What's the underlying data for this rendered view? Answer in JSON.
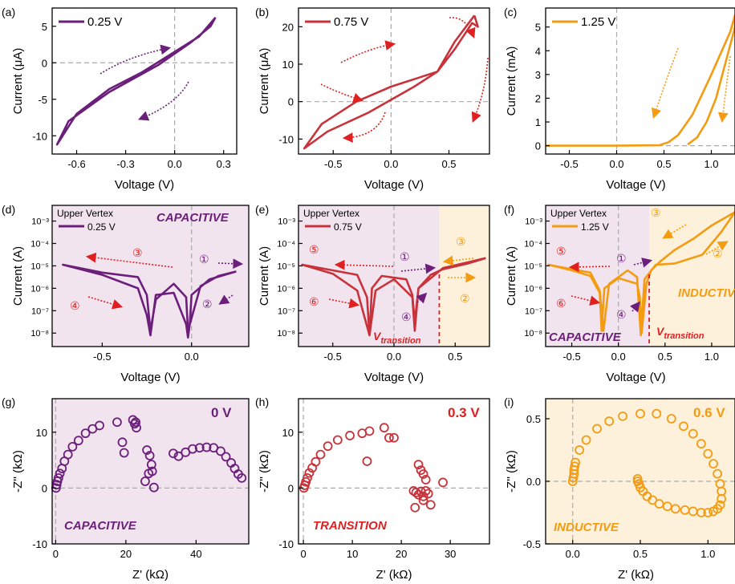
{
  "chart_data": [
    {
      "panel": "(a)",
      "type": "line",
      "xlabel": "Voltage (V)",
      "ylabel": "Current (μA)",
      "xlim": [
        -0.75,
        0.38
      ],
      "ylim": [
        -12.5,
        7.5
      ],
      "xticks": [
        -0.6,
        -0.3,
        0.0,
        0.3
      ],
      "xtick_labels": [
        "-0.6",
        "-0.3",
        "0.0",
        "0.3"
      ],
      "yticks": [
        -10,
        -5,
        0,
        5
      ],
      "ytick_labels": [
        "-10",
        "-5",
        "0",
        "5"
      ],
      "yscale": "linear",
      "background": "#ffffff",
      "series": [
        {
          "name": "0.25 V",
          "color": "#6b1f7b",
          "x": [
            0.25,
            0.15,
            0.0,
            -0.2,
            -0.4,
            -0.6,
            -0.72,
            -0.65,
            -0.4,
            -0.1,
            0.1,
            0.22,
            0.25
          ],
          "y": [
            6.2,
            3.6,
            1.5,
            -1.3,
            -3.6,
            -7.0,
            -11.2,
            -8.0,
            -4.0,
            -0.3,
            2.8,
            5.0,
            6.2
          ]
        }
      ],
      "legend": "top-left",
      "grid": false,
      "text": []
    },
    {
      "panel": "(b)",
      "type": "line",
      "xlabel": "Voltage (V)",
      "ylabel": "Current (μA)",
      "xlim": [
        -0.8,
        0.85
      ],
      "ylim": [
        -14,
        25
      ],
      "xticks": [
        -0.5,
        0.0,
        0.5
      ],
      "xtick_labels": [
        "-0.5",
        "0.0",
        "0.5"
      ],
      "yticks": [
        -10,
        0,
        10,
        20
      ],
      "ytick_labels": [
        "-10",
        "0",
        "10",
        "20"
      ],
      "yscale": "linear",
      "background": "#ffffff",
      "series": [
        {
          "name": "0.75 V",
          "color": "#c8323a",
          "x": [
            0.72,
            0.55,
            0.4,
            0.2,
            0.0,
            -0.3,
            -0.6,
            -0.75,
            -0.55,
            -0.2,
            0.2,
            0.4,
            0.55,
            0.7,
            0.75,
            0.72
          ],
          "y": [
            23,
            16,
            8,
            6,
            4,
            0,
            -6,
            -12.5,
            -8,
            -3,
            4,
            8,
            14,
            21,
            20,
            23
          ]
        }
      ],
      "legend": "top-left",
      "grid": false,
      "text": []
    },
    {
      "panel": "(c)",
      "type": "line",
      "xlabel": "Voltage (V)",
      "ylabel": "Current (mA)",
      "xlim": [
        -0.75,
        1.25
      ],
      "ylim": [
        -0.35,
        5.8
      ],
      "xticks": [
        -0.5,
        0.0,
        0.5,
        1.0
      ],
      "xtick_labels": [
        "-0.5",
        "0.0",
        "0.5",
        "1.0"
      ],
      "yticks": [
        0,
        1,
        2,
        3,
        4,
        5
      ],
      "ytick_labels": [
        "0",
        "1",
        "2",
        "3",
        "4",
        "5"
      ],
      "yscale": "linear",
      "background": "#ffffff",
      "series": [
        {
          "name": "1.25 V",
          "color": "#f39c12",
          "x": [
            -0.75,
            0.0,
            0.45,
            0.55,
            0.65,
            0.8,
            1.0,
            1.2,
            1.25,
            1.25,
            1.15,
            1.05,
            0.95,
            0.85,
            0.75
          ],
          "y": [
            0.0,
            0.0,
            0.02,
            0.15,
            0.45,
            1.3,
            3.0,
            4.8,
            5.5,
            5.0,
            3.5,
            2.0,
            1.0,
            0.35,
            0.05
          ]
        }
      ],
      "legend": "top-left",
      "grid": false,
      "text": []
    },
    {
      "panel": "(d)",
      "type": "line",
      "xlabel": "Voltage (V)",
      "ylabel": "Current (A)",
      "xlim": [
        -0.78,
        0.32
      ],
      "ylim": [
        -8.6,
        -2.3
      ],
      "xticks": [
        -0.5,
        0.0
      ],
      "xtick_labels": [
        "-0.5",
        "0.0"
      ],
      "yticks": [
        -8,
        -7,
        -6,
        -5,
        -4,
        -3
      ],
      "ytick_labels": [
        "10-8",
        "10-7",
        "10-6",
        "10-5",
        "10-4",
        "10-3"
      ],
      "yscale": "log",
      "background": "#f2e4ef",
      "series": [
        {
          "name": "0.25 V",
          "color": "#6b1f7b",
          "x": [
            0.25,
            0.1,
            0.0,
            -0.01,
            -0.02,
            -0.03,
            -0.1,
            -0.2,
            -0.23,
            -0.25,
            -0.3,
            -0.5,
            -0.72,
            -0.5,
            -0.3,
            -0.25,
            -0.23,
            -0.2,
            -0.1,
            -0.03,
            -0.02,
            0.05,
            0.15,
            0.25
          ],
          "y": [
            -5.25,
            -5.6,
            -6.3,
            -7.6,
            -8.2,
            -7.6,
            -6.2,
            -6.3,
            -8.1,
            -7.2,
            -6.0,
            -5.4,
            -4.95,
            -5.3,
            -5.5,
            -6.3,
            -7.9,
            -6.5,
            -5.8,
            -6.4,
            -7.9,
            -5.9,
            -5.45,
            -5.25
          ]
        }
      ],
      "legend": "top-left",
      "legend_title": "Upper Vertex",
      "grid": false,
      "text": [
        "CAPACITIVE",
        "①",
        "②",
        "③",
        "④"
      ]
    },
    {
      "panel": "(e)",
      "type": "line",
      "xlabel": "Voltage (V)",
      "ylabel": "Current (A)",
      "xlim": [
        -0.78,
        0.78
      ],
      "ylim": [
        -8.6,
        -2.3
      ],
      "xticks": [
        -0.5,
        0.0,
        0.5
      ],
      "xtick_labels": [
        "-0.5",
        "0.0",
        "0.5"
      ],
      "yticks": [
        -8,
        -7,
        -6,
        -5,
        -4,
        -3
      ],
      "ytick_labels": [
        "10-8",
        "10-7",
        "10-6",
        "10-5",
        "10-4",
        "10-3"
      ],
      "yscale": "log",
      "background": "#f2e4ef",
      "background_right": "#fdf1dc",
      "v_transition": 0.37,
      "series": [
        {
          "name": "0.75 V",
          "color": "#c8323a",
          "x": [
            0.75,
            0.6,
            0.4,
            0.3,
            0.2,
            0.17,
            0.15,
            0.0,
            -0.15,
            -0.18,
            -0.2,
            -0.3,
            -0.5,
            -0.75,
            -0.5,
            -0.3,
            -0.22,
            -0.2,
            -0.18,
            -0.1,
            0.1,
            0.15,
            0.17,
            0.2,
            0.4,
            0.6,
            0.75
          ],
          "y": [
            -4.65,
            -4.9,
            -5.15,
            -5.4,
            -6.0,
            -7.9,
            -6.4,
            -5.6,
            -6.1,
            -7.3,
            -8.1,
            -6.1,
            -5.35,
            -4.95,
            -5.2,
            -5.4,
            -6.4,
            -8.1,
            -6.0,
            -5.45,
            -5.6,
            -6.3,
            -7.5,
            -6.0,
            -5.1,
            -4.85,
            -4.65
          ]
        }
      ],
      "legend": "top-left",
      "legend_title": "Upper Vertex",
      "grid": false,
      "text": [
        "V",
        "transition",
        "①",
        "②",
        "③",
        "④",
        "⑤",
        "⑥"
      ]
    },
    {
      "panel": "(f)",
      "type": "line",
      "xlabel": "Voltage (V)",
      "ylabel": "Current (A)",
      "xlim": [
        -0.78,
        1.25
      ],
      "ylim": [
        -8.6,
        -2.3
      ],
      "xticks": [
        -0.5,
        0.0,
        0.5,
        1.0
      ],
      "xtick_labels": [
        "-0.5",
        "0.0",
        "0.5",
        "1.0"
      ],
      "yticks": [
        -8,
        -7,
        -6,
        -5,
        -4,
        -3
      ],
      "ytick_labels": [
        "10-8",
        "10-7",
        "10-6",
        "10-5",
        "10-4",
        "10-3"
      ],
      "yscale": "log",
      "background": "#f2e4ef",
      "background_right": "#fdf1dc",
      "v_transition": 0.33,
      "series": [
        {
          "name": "1.25 V",
          "color": "#f39c12",
          "x": [
            1.25,
            1.0,
            0.8,
            0.6,
            0.45,
            0.35,
            0.3,
            0.25,
            0.23,
            0.2,
            0.0,
            -0.15,
            -0.18,
            -0.2,
            -0.3,
            -0.5,
            -0.75,
            -0.5,
            -0.3,
            -0.2,
            -0.16,
            -0.1,
            0.1,
            0.2,
            0.24,
            0.28,
            0.4,
            0.6,
            0.9,
            1.1,
            1.25
          ],
          "y": [
            -2.6,
            -3.2,
            -3.8,
            -4.3,
            -4.8,
            -5.2,
            -5.8,
            -8.0,
            -6.4,
            -5.8,
            -5.55,
            -6.0,
            -7.9,
            -6.2,
            -5.45,
            -5.2,
            -4.95,
            -5.15,
            -5.3,
            -6.1,
            -7.9,
            -5.8,
            -5.2,
            -5.5,
            -8.1,
            -5.6,
            -4.95,
            -4.9,
            -4.5,
            -3.5,
            -2.6
          ]
        }
      ],
      "legend": "top-left",
      "legend_title": "Upper Vertex",
      "grid": false,
      "text": [
        "CAPACITIVE",
        "INDUCTIVE",
        "V",
        "transition",
        "①",
        "②",
        "③",
        "④",
        "⑤",
        "⑥"
      ]
    },
    {
      "panel": "(g)",
      "type": "scatter",
      "xlabel": "Z' (kΩ)",
      "ylabel": "-Z'' (kΩ)",
      "xlim": [
        -1,
        55
      ],
      "ylim": [
        -10,
        16
      ],
      "xticks": [
        0,
        20,
        40
      ],
      "xtick_labels": [
        "0",
        "20",
        "40"
      ],
      "yticks": [
        -10,
        0,
        10
      ],
      "ytick_labels": [
        "-10",
        "0",
        "10"
      ],
      "yscale": "linear",
      "background": "#f2e4ef",
      "series": [
        {
          "name": "",
          "color": "#6b1f7b",
          "x": [
            0.1,
            0.3,
            0.5,
            0.8,
            1.2,
            1.8,
            2.5,
            3.5,
            4.8,
            6.5,
            8.5,
            10.5,
            12.5,
            17.5,
            19.0,
            19.5,
            22.0,
            22.5,
            22.8,
            23.0,
            26.0,
            26.8,
            27.3,
            26.5,
            25.5,
            27.5,
            28.0,
            33.5,
            35.0,
            37.0,
            39.0,
            41.0,
            43.0,
            45.0,
            47.0,
            48.5,
            50.0,
            51.0,
            52.0,
            53.0
          ],
          "y": [
            0.0,
            0.6,
            1.2,
            1.8,
            2.6,
            3.5,
            4.8,
            6.0,
            7.4,
            8.5,
            9.8,
            10.6,
            11.2,
            11.8,
            8.2,
            6.3,
            12.2,
            11.5,
            11.8,
            10.8,
            6.8,
            5.8,
            4.2,
            2.6,
            1.2,
            3.0,
            0.1,
            6.2,
            5.7,
            6.4,
            7.0,
            7.2,
            7.3,
            7.2,
            6.6,
            5.6,
            4.5,
            3.5,
            2.5,
            1.8
          ]
        }
      ],
      "grid": false,
      "text": [
        "0 V",
        "CAPACITIVE"
      ]
    },
    {
      "panel": "(h)",
      "type": "scatter",
      "xlabel": "Z' (kΩ)",
      "ylabel": "-Z'' (kΩ)",
      "xlim": [
        -1,
        38
      ],
      "ylim": [
        -10,
        16
      ],
      "xticks": [
        0,
        10,
        20,
        30
      ],
      "xtick_labels": [
        "0",
        "10",
        "20",
        "30"
      ],
      "yticks": [
        -10,
        0,
        10
      ],
      "ytick_labels": [
        "-10",
        "0",
        "10"
      ],
      "yscale": "linear",
      "background": "#ffffff",
      "series": [
        {
          "name": "",
          "color": "#c8323a",
          "x": [
            0.1,
            0.3,
            0.5,
            0.8,
            1.2,
            1.8,
            2.5,
            3.5,
            5.0,
            7.0,
            9.5,
            12.0,
            13.5,
            16.5,
            17.5,
            18.5,
            13.0,
            23.5,
            24.0,
            24.5,
            25.0,
            22.5,
            23.0,
            23.5,
            24.0,
            24.5,
            25.0,
            25.5,
            22.8,
            26.0,
            24.5,
            28.5
          ],
          "y": [
            0.0,
            0.5,
            1.1,
            1.8,
            2.7,
            3.6,
            4.7,
            6.0,
            7.5,
            8.6,
            9.4,
            9.8,
            10.2,
            10.8,
            9.0,
            9.0,
            4.8,
            4.2,
            3.2,
            2.5,
            1.5,
            -0.5,
            -0.8,
            -1.2,
            -0.6,
            -1.5,
            -0.5,
            -1.0,
            -3.5,
            -3.0,
            -2.2,
            1.0
          ]
        }
      ],
      "grid": false,
      "text": [
        "0.3 V",
        "TRANSITION"
      ]
    },
    {
      "panel": "(i)",
      "type": "scatter",
      "xlabel": "Z' (kΩ)",
      "ylabel": "-Z'' (kΩ)",
      "xlim": [
        -0.2,
        1.2
      ],
      "ylim": [
        -0.5,
        0.66
      ],
      "xticks": [
        0.0,
        0.5,
        1.0
      ],
      "xtick_labels": [
        "0.0",
        "0.5",
        "1.0"
      ],
      "yticks": [
        -0.5,
        0.0,
        0.5
      ],
      "ytick_labels": [
        "-0.5",
        "0.0",
        "0.5"
      ],
      "yscale": "linear",
      "background": "#fdf1dc",
      "series": [
        {
          "name": "",
          "color": "#f39c12",
          "x": [
            0.0,
            0.005,
            0.01,
            0.01,
            0.015,
            0.02,
            0.05,
            0.1,
            0.18,
            0.27,
            0.37,
            0.5,
            0.62,
            0.73,
            0.82,
            0.89,
            0.95,
            1.0,
            1.04,
            1.07,
            1.09,
            1.1,
            1.1,
            1.09,
            1.07,
            1.04,
            1.0,
            0.95,
            0.89,
            0.83,
            0.76,
            0.7,
            0.64,
            0.59,
            0.55,
            0.52,
            0.5,
            0.49,
            0.48,
            0.48
          ],
          "y": [
            0.0,
            0.03,
            0.06,
            0.09,
            0.12,
            0.15,
            0.25,
            0.33,
            0.42,
            0.48,
            0.52,
            0.54,
            0.54,
            0.5,
            0.44,
            0.38,
            0.3,
            0.22,
            0.14,
            0.06,
            -0.02,
            -0.08,
            -0.14,
            -0.19,
            -0.22,
            -0.24,
            -0.25,
            -0.25,
            -0.24,
            -0.23,
            -0.22,
            -0.2,
            -0.18,
            -0.15,
            -0.12,
            -0.08,
            -0.05,
            -0.02,
            0.0,
            0.02
          ]
        }
      ],
      "grid": false,
      "text": [
        "0.6 V",
        "INDUCTIVE"
      ]
    }
  ]
}
